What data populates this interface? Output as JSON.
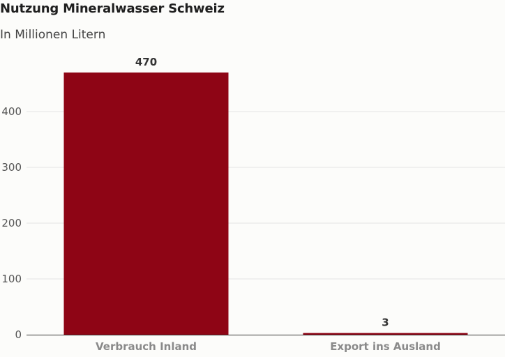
{
  "chart_data": {
    "type": "bar",
    "title": "Nutzung Mineralwasser Schweiz",
    "subtitle": "In Millionen Litern",
    "categories": [
      "Verbrauch Inland",
      "Export ins Ausland"
    ],
    "values": [
      470,
      3
    ],
    "value_labels": [
      "470",
      "3"
    ],
    "xlabel": "",
    "ylabel": "",
    "ylim": [
      0,
      470
    ],
    "yticks": [
      0,
      100,
      200,
      300,
      400
    ],
    "grid": true,
    "bar_color": "#8e0515",
    "grid_color": "#e4e4e4",
    "axis_color": "#333333"
  }
}
